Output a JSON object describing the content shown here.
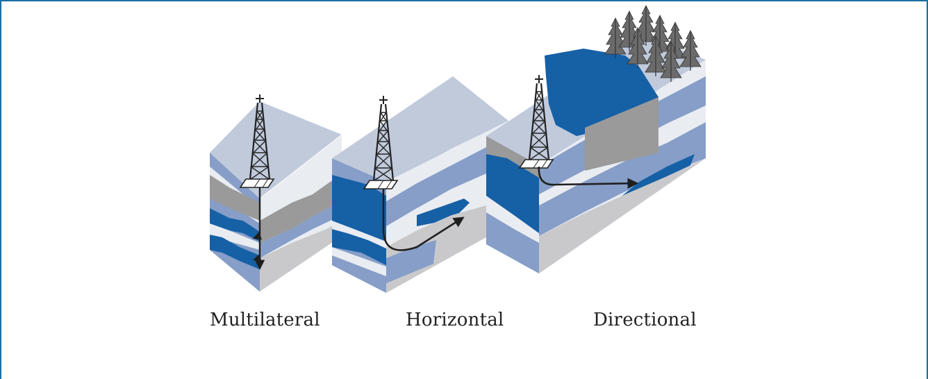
{
  "diagram": {
    "blocks": [
      {
        "label": "Multilateral"
      },
      {
        "label": "Horizontal"
      },
      {
        "label": "Directional"
      }
    ],
    "colors": {
      "frame_border": "#1a6fa3",
      "top_face": "#c0cadb",
      "dark_blue_layer": "#1660a6",
      "mid_blue_layer": "#869ec8",
      "light_layer": "#e9ecf1",
      "gray_layer": "#9a9a9a",
      "light_gray_layer": "#c9c9cc",
      "well_path": "#1f1f1f"
    },
    "icons": [
      "drilling-rig-icon",
      "pine-tree-icon",
      "arrowhead-icon"
    ]
  }
}
